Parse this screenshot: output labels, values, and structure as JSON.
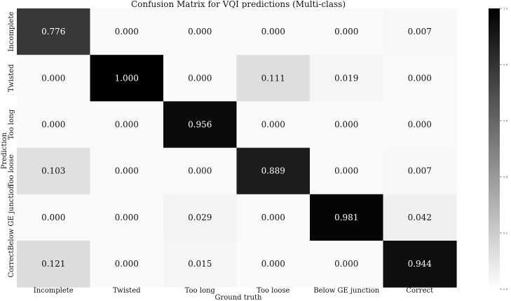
{
  "chart_data": {
    "type": "heatmap",
    "title": "Confusion Matrix for VQI predictions (Multi-class)",
    "xlabel": "Ground truth",
    "ylabel": "Prediction",
    "x_categories": [
      "Incomplete",
      "Twisted",
      "Too long",
      "Too loose",
      "Below GE junction",
      "Correct"
    ],
    "y_categories": [
      "Incomplete",
      "Twisted",
      "Too long",
      "Too loose",
      "Below GE junction",
      "Correct"
    ],
    "values": [
      [
        "0.776",
        "0.000",
        "0.000",
        "0.000",
        "0.000",
        "0.007"
      ],
      [
        "0.000",
        "1.000",
        "0.000",
        "0.111",
        "0.019",
        "0.000"
      ],
      [
        "0.000",
        "0.000",
        "0.956",
        "0.000",
        "0.000",
        "0.000"
      ],
      [
        "0.103",
        "0.000",
        "0.000",
        "0.889",
        "0.000",
        "0.007"
      ],
      [
        "0.000",
        "0.000",
        "0.029",
        "0.000",
        "0.981",
        "0.042"
      ],
      [
        "0.121",
        "0.000",
        "0.015",
        "0.000",
        "0.000",
        "0.944"
      ]
    ],
    "colormap": "Greys",
    "vmin": 0.0,
    "vmax": 1.0,
    "colorbar_ticks": [
      "0.0",
      "0.2",
      "0.4",
      "0.6",
      "0.8",
      "1.0"
    ],
    "grid": false,
    "legend": "right colorbar"
  }
}
